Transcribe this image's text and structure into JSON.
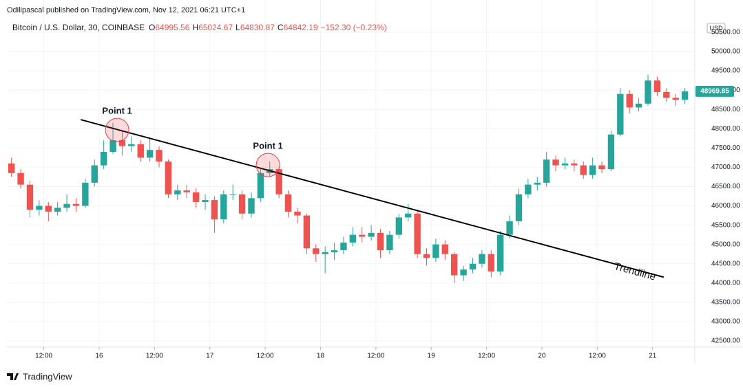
{
  "chart_data": {
    "type": "candlestick",
    "title": "Odilipascal published on TradingView.com, Nov 12, 2021 06:21 UTC+1",
    "subtitle": "Bitcoin / U.S. Dollar, 30, COINBASE",
    "ohlc": [
      {
        "label": "O",
        "value": 64995.56
      },
      {
        "label": "H",
        "value": 65024.67
      },
      {
        "label": "L",
        "value": 64830.87
      },
      {
        "label": "C",
        "value": 64842.19
      }
    ],
    "change": "−152.30 (−0.23%)",
    "currency": "USD",
    "brand": "TradingView",
    "up_color": "#26a69a",
    "down_color": "#ef5350",
    "grid": true,
    "last_price": 48969.85,
    "xlim": [
      4,
      153
    ],
    "ylim": [
      42340,
      50766
    ],
    "xticks": [
      {
        "value": 12,
        "label": "12:00"
      },
      {
        "value": 24,
        "label": "16"
      },
      {
        "value": 36,
        "label": "12:00"
      },
      {
        "value": 48,
        "label": "17"
      },
      {
        "value": 60,
        "label": "12:00"
      },
      {
        "value": 72,
        "label": "18"
      },
      {
        "value": 84,
        "label": "12:00"
      },
      {
        "value": 96,
        "label": "19"
      },
      {
        "value": 108,
        "label": "12:00"
      },
      {
        "value": 120,
        "label": "20"
      },
      {
        "value": 132,
        "label": "12:00"
      },
      {
        "value": 144,
        "label": "21"
      }
    ],
    "yticks": [
      {
        "value": 42500,
        "label": "42500.00"
      },
      {
        "value": 43000,
        "label": "43000.00"
      },
      {
        "value": 43500,
        "label": "43500.00"
      },
      {
        "value": 44000,
        "label": "44000.00"
      },
      {
        "value": 44500,
        "label": "44500.00"
      },
      {
        "value": 45000,
        "label": "45000.00"
      },
      {
        "value": 45500,
        "label": "45500.00"
      },
      {
        "value": 46000,
        "label": "46000.00"
      },
      {
        "value": 46500,
        "label": "46500.00"
      },
      {
        "value": 47000,
        "label": "47000.00"
      },
      {
        "value": 47500,
        "label": "47500.00"
      },
      {
        "value": 48000,
        "label": "48000.00"
      },
      {
        "value": 48500,
        "label": "48500.00"
      },
      {
        "value": 49000,
        "label": "49000.00"
      },
      {
        "value": 49500,
        "label": "49500.00"
      },
      {
        "value": 50000,
        "label": "50000.00"
      },
      {
        "value": 50500,
        "label": "50500.00"
      }
    ],
    "x": [
      5,
      7,
      9,
      11,
      13,
      15,
      17,
      19,
      21,
      23,
      25,
      27,
      29,
      31,
      33,
      35,
      37,
      39,
      41,
      43,
      45,
      47,
      49,
      51,
      53,
      55,
      57,
      59,
      61,
      63,
      65,
      67,
      69,
      71,
      73,
      75,
      77,
      79,
      81,
      83,
      85,
      87,
      89,
      91,
      93,
      95,
      97,
      99,
      101,
      103,
      105,
      107,
      109,
      111,
      113,
      115,
      117,
      119,
      121,
      123,
      125,
      127,
      129,
      131,
      133,
      135,
      137,
      139,
      141,
      143,
      145,
      147,
      149,
      151
    ],
    "open": [
      47100,
      46850,
      46550,
      45900,
      46000,
      45850,
      45950,
      46050,
      46000,
      46600,
      47050,
      47400,
      47700,
      47550,
      47600,
      47250,
      47450,
      47150,
      46300,
      46400,
      46350,
      46100,
      46150,
      45650,
      46300,
      46300,
      45800,
      46200,
      46850,
      46950,
      46300,
      45850,
      45750,
      44900,
      44750,
      44800,
      44850,
      45050,
      45250,
      45200,
      45300,
      44850,
      45250,
      45700,
      45800,
      44750,
      44650,
      45000,
      44750,
      44200,
      44350,
      44500,
      44750,
      44300,
      45250,
      45600,
      46300,
      46550,
      46600,
      47200,
      47050,
      47100,
      47050,
      46800,
      47050,
      46950,
      47850,
      48900,
      48550,
      48650,
      49250,
      48950,
      48800,
      48750
    ],
    "high": [
      47250,
      46950,
      46650,
      46150,
      46100,
      46100,
      46300,
      46200,
      46700,
      47200,
      47700,
      48150,
      47950,
      47800,
      47700,
      47750,
      47550,
      47200,
      46550,
      46550,
      46450,
      46300,
      46250,
      46400,
      46550,
      46400,
      46350,
      46950,
      47150,
      47000,
      46400,
      45950,
      45800,
      45000,
      44950,
      45050,
      45200,
      45450,
      45450,
      45500,
      45400,
      45350,
      45800,
      46050,
      45900,
      44900,
      45150,
      45100,
      44800,
      44450,
      44650,
      44850,
      44850,
      45350,
      45750,
      46450,
      46700,
      46750,
      47400,
      47300,
      47250,
      47200,
      47150,
      47250,
      47150,
      47950,
      49050,
      49000,
      48800,
      49400,
      49350,
      49050,
      48900,
      49050
    ],
    "low": [
      46750,
      46450,
      45700,
      45750,
      45600,
      45750,
      45850,
      45850,
      45950,
      46500,
      46950,
      47350,
      47300,
      47400,
      47150,
      47150,
      47000,
      46200,
      46150,
      46200,
      45950,
      45900,
      45300,
      45550,
      46150,
      45650,
      45700,
      46100,
      46750,
      46200,
      45700,
      45550,
      44750,
      44550,
      44250,
      44600,
      44750,
      44950,
      45050,
      45100,
      44650,
      44750,
      45150,
      45600,
      44650,
      44450,
      44550,
      44600,
      44000,
      44050,
      44250,
      44400,
      44150,
      44200,
      45150,
      45500,
      46200,
      46400,
      46500,
      46900,
      46950,
      46900,
      46700,
      46700,
      46850,
      46900,
      47800,
      48400,
      48450,
      48600,
      48850,
      48700,
      48600,
      48650
    ],
    "close": [
      46850,
      46550,
      45900,
      46000,
      45850,
      45950,
      46050,
      46000,
      46600,
      47050,
      47400,
      47700,
      47550,
      47600,
      47250,
      47450,
      47150,
      46300,
      46400,
      46350,
      46100,
      46150,
      45650,
      46300,
      46300,
      45800,
      46200,
      46850,
      46950,
      46300,
      45850,
      45750,
      44900,
      44750,
      44800,
      44850,
      45050,
      45250,
      45200,
      45300,
      44850,
      45250,
      45700,
      45800,
      44750,
      44650,
      45000,
      44750,
      44200,
      44350,
      44500,
      44750,
      44300,
      45250,
      45600,
      46300,
      46550,
      46600,
      47200,
      47050,
      47100,
      47050,
      46800,
      47050,
      46950,
      47850,
      48900,
      48550,
      48650,
      49250,
      48950,
      48800,
      48750,
      48969.85
    ],
    "annotations": [
      {
        "text": "Point 1",
        "x": 27.9,
        "y": 47968
      },
      {
        "text": "Point 1",
        "x": 60.6,
        "y": 47059
      }
    ],
    "trendline": {
      "label": "Trendline",
      "x": [
        20,
        146.4
      ],
      "y": [
        48235,
        44153
      ]
    }
  }
}
